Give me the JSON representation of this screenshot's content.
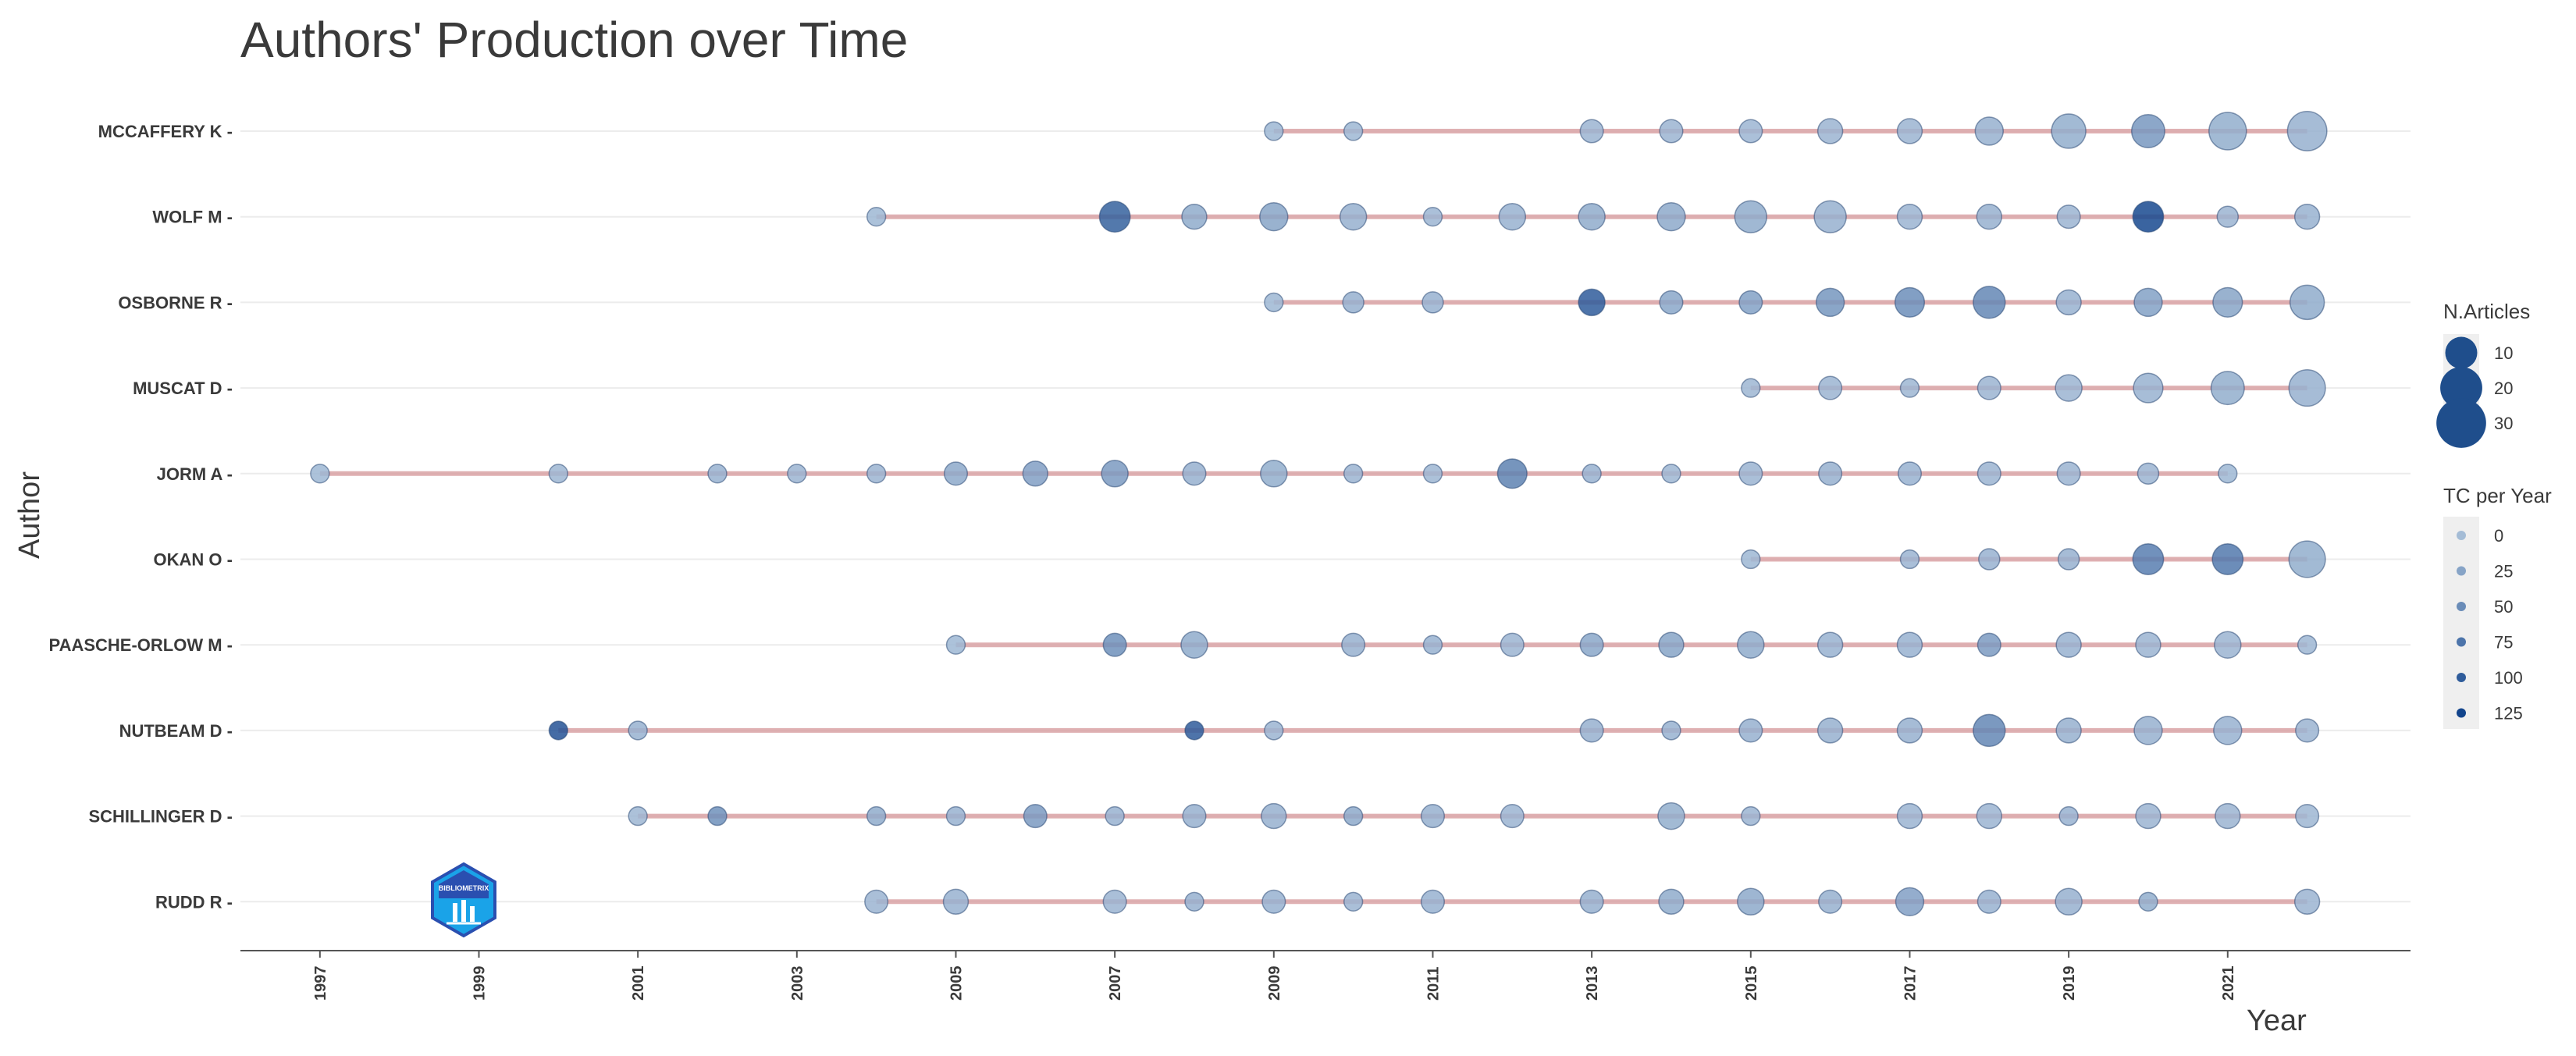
{
  "chart_data": {
    "type": "scatter",
    "title": "Authors' Production over Time",
    "xlabel": "Year",
    "ylabel": "Author",
    "xlim": [
      1996,
      2023.3
    ],
    "x_ticks": [
      "1997",
      "1999",
      "2001",
      "2003",
      "2005",
      "2007",
      "2009",
      "2011",
      "2013",
      "2015",
      "2017",
      "2019",
      "2021"
    ],
    "line_color": "#d9a2a4",
    "point_color": "#1f4e8c",
    "grid": true,
    "legend_position": "right",
    "size_legend": {
      "title": "N.Articles",
      "entries": [
        "10",
        "20",
        "30"
      ]
    },
    "color_legend": {
      "title": "TC per Year",
      "entries": [
        "0",
        "25",
        "50",
        "75",
        "100",
        "125"
      ]
    },
    "authors": [
      {
        "name": "MCCAFFERY K",
        "points": [
          [
            2009,
            2,
            5
          ],
          [
            2010,
            2,
            5
          ],
          [
            2013,
            4,
            8
          ],
          [
            2014,
            4,
            8
          ],
          [
            2015,
            4,
            7
          ],
          [
            2016,
            5,
            8
          ],
          [
            2017,
            5,
            8
          ],
          [
            2018,
            7,
            12
          ],
          [
            2019,
            12,
            15
          ],
          [
            2020,
            11,
            38
          ],
          [
            2021,
            15,
            15
          ],
          [
            2022,
            17,
            12
          ]
        ]
      },
      {
        "name": "WOLF M",
        "points": [
          [
            2004,
            2,
            5
          ],
          [
            2007,
            9,
            95
          ],
          [
            2008,
            5,
            18
          ],
          [
            2009,
            7,
            25
          ],
          [
            2010,
            6,
            12
          ],
          [
            2011,
            2,
            7
          ],
          [
            2012,
            6,
            10
          ],
          [
            2013,
            6,
            18
          ],
          [
            2014,
            7,
            20
          ],
          [
            2015,
            10,
            18
          ],
          [
            2016,
            10,
            12
          ],
          [
            2017,
            5,
            8
          ],
          [
            2018,
            5,
            12
          ],
          [
            2019,
            4,
            8
          ],
          [
            2020,
            9,
            120
          ],
          [
            2021,
            3,
            8
          ],
          [
            2022,
            5,
            10
          ]
        ]
      },
      {
        "name": "OSBORNE R",
        "points": [
          [
            2009,
            2,
            5
          ],
          [
            2010,
            3,
            12
          ],
          [
            2011,
            3,
            10
          ],
          [
            2013,
            6,
            100
          ],
          [
            2014,
            4,
            22
          ],
          [
            2015,
            4,
            28
          ],
          [
            2016,
            7,
            40
          ],
          [
            2017,
            8,
            48
          ],
          [
            2018,
            10,
            55
          ],
          [
            2019,
            5,
            10
          ],
          [
            2020,
            7,
            28
          ],
          [
            2021,
            8,
            25
          ],
          [
            2022,
            12,
            18
          ]
        ]
      },
      {
        "name": "MUSCAT D",
        "points": [
          [
            2015,
            2,
            6
          ],
          [
            2016,
            4,
            8
          ],
          [
            2017,
            2,
            6
          ],
          [
            2018,
            4,
            8
          ],
          [
            2019,
            6,
            8
          ],
          [
            2020,
            8,
            10
          ],
          [
            2021,
            11,
            15
          ],
          [
            2022,
            14,
            12
          ]
        ]
      },
      {
        "name": "JORM A",
        "points": [
          [
            1997,
            2,
            5
          ],
          [
            2000,
            2,
            6
          ],
          [
            2002,
            2,
            10
          ],
          [
            2003,
            2,
            8
          ],
          [
            2004,
            2,
            8
          ],
          [
            2005,
            4,
            20
          ],
          [
            2006,
            5,
            30
          ],
          [
            2007,
            6,
            35
          ],
          [
            2008,
            4,
            12
          ],
          [
            2009,
            6,
            15
          ],
          [
            2010,
            2,
            8
          ],
          [
            2011,
            2,
            6
          ],
          [
            2012,
            8,
            60
          ],
          [
            2013,
            2,
            10
          ],
          [
            2014,
            2,
            6
          ],
          [
            2015,
            4,
            8
          ],
          [
            2016,
            4,
            12
          ],
          [
            2017,
            4,
            10
          ],
          [
            2018,
            4,
            8
          ],
          [
            2019,
            4,
            8
          ],
          [
            2020,
            3,
            8
          ],
          [
            2021,
            2,
            5
          ]
        ]
      },
      {
        "name": "OKAN O",
        "points": [
          [
            2015,
            2,
            5
          ],
          [
            2017,
            2,
            8
          ],
          [
            2018,
            3,
            10
          ],
          [
            2019,
            3,
            12
          ],
          [
            2020,
            9,
            65
          ],
          [
            2021,
            9,
            70
          ],
          [
            2022,
            14,
            15
          ]
        ]
      },
      {
        "name": "PAASCHE-ORLOW M",
        "points": [
          [
            2005,
            2,
            5
          ],
          [
            2007,
            4,
            45
          ],
          [
            2008,
            6,
            18
          ],
          [
            2010,
            4,
            12
          ],
          [
            2011,
            2,
            10
          ],
          [
            2012,
            4,
            8
          ],
          [
            2013,
            4,
            22
          ],
          [
            2014,
            5,
            25
          ],
          [
            2015,
            6,
            18
          ],
          [
            2016,
            5,
            10
          ],
          [
            2017,
            5,
            10
          ],
          [
            2018,
            4,
            35
          ],
          [
            2019,
            5,
            10
          ],
          [
            2020,
            5,
            8
          ],
          [
            2021,
            6,
            8
          ],
          [
            2022,
            2,
            6
          ]
        ]
      },
      {
        "name": "NUTBEAM D",
        "points": [
          [
            2000,
            2,
            110
          ],
          [
            2001,
            2,
            10
          ],
          [
            2008,
            2,
            100
          ],
          [
            2009,
            2,
            8
          ],
          [
            2013,
            4,
            12
          ],
          [
            2014,
            2,
            10
          ],
          [
            2015,
            4,
            12
          ],
          [
            2016,
            5,
            12
          ],
          [
            2017,
            5,
            12
          ],
          [
            2018,
            10,
            55
          ],
          [
            2019,
            5,
            12
          ],
          [
            2020,
            7,
            12
          ],
          [
            2021,
            7,
            10
          ],
          [
            2022,
            4,
            8
          ]
        ]
      },
      {
        "name": "SCHILLINGER D",
        "points": [
          [
            2001,
            2,
            6
          ],
          [
            2002,
            2,
            45
          ],
          [
            2004,
            2,
            18
          ],
          [
            2005,
            2,
            10
          ],
          [
            2006,
            4,
            35
          ],
          [
            2007,
            2,
            10
          ],
          [
            2008,
            4,
            12
          ],
          [
            2009,
            5,
            12
          ],
          [
            2010,
            2,
            20
          ],
          [
            2011,
            4,
            12
          ],
          [
            2012,
            4,
            8
          ],
          [
            2014,
            6,
            15
          ],
          [
            2015,
            2,
            8
          ],
          [
            2017,
            5,
            8
          ],
          [
            2018,
            5,
            8
          ],
          [
            2019,
            2,
            10
          ],
          [
            2020,
            5,
            8
          ],
          [
            2021,
            5,
            8
          ],
          [
            2022,
            4,
            6
          ]
        ]
      },
      {
        "name": "RUDD R",
        "points": [
          [
            2004,
            4,
            8
          ],
          [
            2005,
            5,
            10
          ],
          [
            2007,
            4,
            8
          ],
          [
            2008,
            2,
            12
          ],
          [
            2009,
            4,
            10
          ],
          [
            2010,
            2,
            8
          ],
          [
            2011,
            4,
            10
          ],
          [
            2013,
            4,
            12
          ],
          [
            2014,
            5,
            18
          ],
          [
            2015,
            6,
            20
          ],
          [
            2016,
            4,
            12
          ],
          [
            2017,
            7,
            30
          ],
          [
            2018,
            4,
            10
          ],
          [
            2019,
            6,
            12
          ],
          [
            2020,
            2,
            15
          ],
          [
            2022,
            5,
            8
          ]
        ]
      }
    ]
  },
  "logo": {
    "text": "BIBLIOMETRIX",
    "name": "bibliometrix-logo"
  }
}
